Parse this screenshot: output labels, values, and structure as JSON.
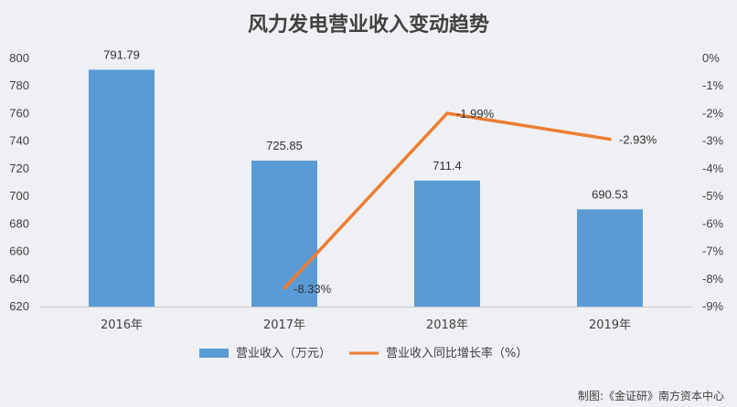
{
  "chart_data": {
    "type": "bar",
    "title": "风力发电营业收入变动趋势",
    "categories": [
      "2016年",
      "2017年",
      "2018年",
      "2019年"
    ],
    "series": [
      {
        "name": "营业收入（万元）",
        "type": "bar",
        "axis": "left",
        "color": "#5b9bd5",
        "values": [
          791.79,
          725.85,
          711.4,
          690.53
        ],
        "labels": [
          "791.79",
          "725.85",
          "711.4",
          "690.53"
        ]
      },
      {
        "name": "营业收入同比增长率（%）",
        "type": "line",
        "axis": "right",
        "color": "#ed7d31",
        "values": [
          null,
          -8.33,
          -1.99,
          -2.93
        ],
        "labels": [
          "",
          "-8.33%",
          "-1.99%",
          "-2.93%"
        ]
      }
    ],
    "y_left": {
      "min": 620,
      "max": 800,
      "step": 20,
      "ticks": [
        "620",
        "640",
        "660",
        "680",
        "700",
        "720",
        "740",
        "760",
        "780",
        "800"
      ]
    },
    "y_right": {
      "min": -9,
      "max": 0,
      "step": 1,
      "ticks": [
        "-9%",
        "-8%",
        "-7%",
        "-6%",
        "-5%",
        "-4%",
        "-3%",
        "-2%",
        "-1%",
        "0%"
      ]
    },
    "grid": false,
    "legend_position": "bottom"
  },
  "source_note": "制图:《金证研》南方资本中心"
}
